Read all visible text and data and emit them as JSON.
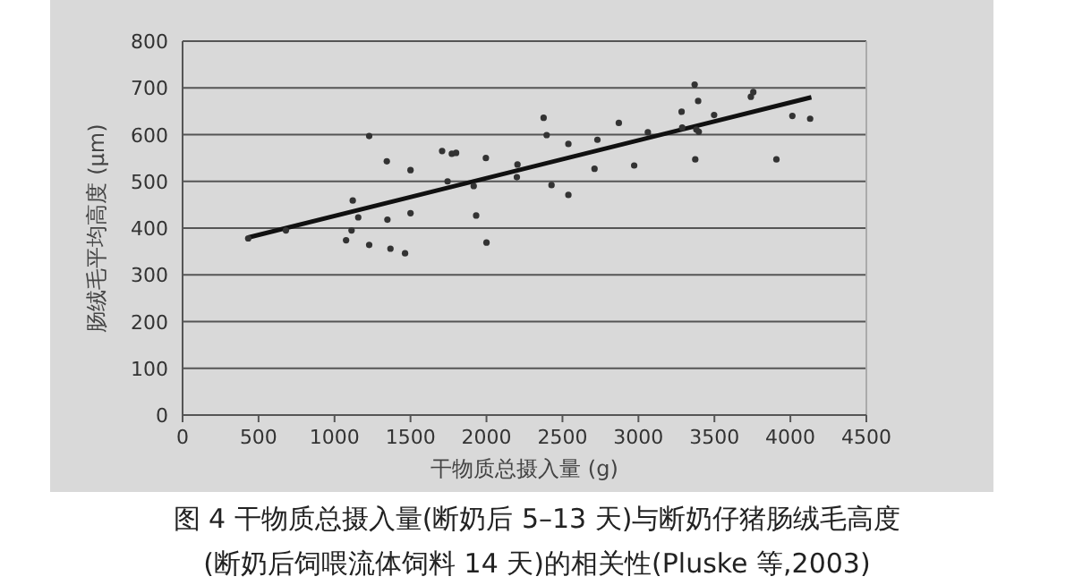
{
  "chart_data": {
    "type": "scatter",
    "xlabel": "干物质总摄入量 (g)",
    "ylabel": "肠绒毛平均高度 (μm)",
    "annotations": [
      "图 4 干物质总摄入量(断奶后 5–13 天)与断奶仔猪肠绒毛高度",
      "(断奶后饲喂流体饲料 14 天)的相关性(Pluske 等,2003)"
    ],
    "xlim": [
      0,
      4500
    ],
    "xticks": [
      0,
      500,
      1000,
      1500,
      2000,
      2500,
      3000,
      3500,
      4000,
      4500
    ],
    "ylim": [
      0,
      800
    ],
    "yticks": [
      0,
      100,
      200,
      300,
      400,
      500,
      600,
      700,
      800
    ],
    "grid": "y",
    "marker": "circle",
    "series": [
      {
        "type": "scatter",
        "color": "#333333",
        "x": [
          432,
          680,
          1120,
          1156,
          1112,
          1076,
          1228,
          1228,
          1344,
          1348,
          1368,
          1464,
          1500,
          1500,
          1708,
          1744,
          1772,
          1800,
          1916,
          1932,
          1996,
          2000,
          2204,
          2200,
          2376,
          2396,
          2428,
          2539,
          2539,
          2711,
          2730,
          2871,
          2972,
          3062,
          3284,
          3288,
          3370,
          3393,
          3381,
          3397,
          3374,
          3498,
          3740,
          3756,
          3908,
          4013,
          4130
        ],
        "values": [
          378,
          395,
          459,
          423,
          395,
          374,
          597,
          364,
          543,
          418,
          356,
          346,
          524,
          432,
          565,
          500,
          559,
          561,
          490,
          427,
          550,
          369,
          536,
          509,
          636,
          599,
          492,
          580,
          471,
          527,
          589,
          625,
          534,
          605,
          649,
          615,
          707,
          672,
          611,
          606,
          547,
          642,
          681,
          691,
          547,
          640,
          634
        ]
      },
      {
        "type": "line",
        "color": "#111111",
        "x": [
          432,
          4138
        ],
        "values": [
          380,
          680
        ],
        "marker": "none"
      }
    ]
  }
}
